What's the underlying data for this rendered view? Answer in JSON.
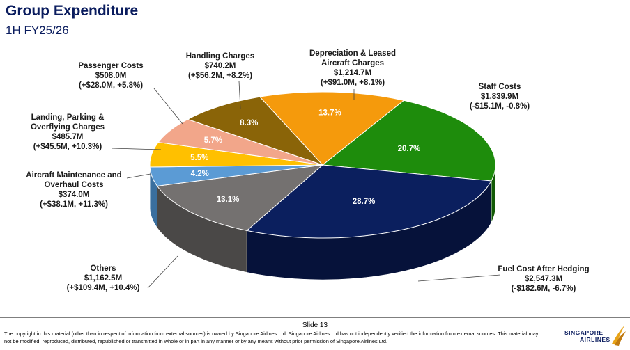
{
  "header": {
    "title": "Group Expenditure",
    "subtitle": "1H FY25/26"
  },
  "footer": {
    "slide": "Slide 13",
    "copyright_line1": "The copyright in this material (other than in respect of information from external sources) is owned by Singapore Airlines Ltd. Singapore Airlines Ltd has not independently verified the information from external sources. This material may",
    "copyright_line2": "not be modified, reproduced, distributed, republished or transmitted in whole or in part in any manner or by any means without prior permission of Singapore Airlines Ltd.",
    "logo_line1": "SINGAPORE",
    "logo_line2": "AIRLINES"
  },
  "chart_data": {
    "type": "pie",
    "title": "Group Expenditure",
    "slices": [
      {
        "name": "Staff Costs",
        "value": 1839.9,
        "percent": "20.7%",
        "amount": "$1,839.9M",
        "change": "(-$15.1M, -0.8%)",
        "color": "#1e8c0c",
        "dark": "#125a06"
      },
      {
        "name": "Fuel Cost After Hedging",
        "value": 2547.3,
        "percent": "28.7%",
        "amount": "$2,547.3M",
        "change": "(-$182.6M, -6.7%)",
        "color": "#0b1f5e",
        "dark": "#06123a"
      },
      {
        "name": "Others",
        "value": 1162.5,
        "percent": "13.1%",
        "amount": "$1,162.5M",
        "change": "(+$109.4M, +10.4%)",
        "color": "#747170",
        "dark": "#4a4847"
      },
      {
        "name": "Aircraft Maintenance and Overhaul Costs",
        "value": 374.0,
        "percent": "4.2%",
        "amount": "$374.0M",
        "change": "(+$38.1M, +11.3%)",
        "color": "#5b9bd5",
        "dark": "#3a6f9f"
      },
      {
        "name": "Landing, Parking & Overflying Charges",
        "value": 485.7,
        "percent": "5.5%",
        "amount": "$485.7M",
        "change": "(+$45.5M, +10.3%)",
        "color": "#ffc000",
        "dark": "#b38600"
      },
      {
        "name": "Passenger Costs",
        "value": 508.0,
        "percent": "5.7%",
        "amount": "$508.0M",
        "change": "(+$28.0M, +5.8%)",
        "color": "#f2a68a",
        "dark": "#b97760"
      },
      {
        "name": "Handling Charges",
        "value": 740.2,
        "percent": "8.3%",
        "amount": "$740.2M",
        "change": "(+$56.2M, +8.2%)",
        "color": "#8a6408",
        "dark": "#5c4205"
      },
      {
        "name": "Depreciation & Leased Aircraft Charges",
        "value": 1214.7,
        "percent": "13.7%",
        "amount": "$1,214.7M",
        "change": "(+$91.0M, +8.1%)",
        "color": "#f59a0c",
        "dark": "#b06d05"
      }
    ]
  }
}
